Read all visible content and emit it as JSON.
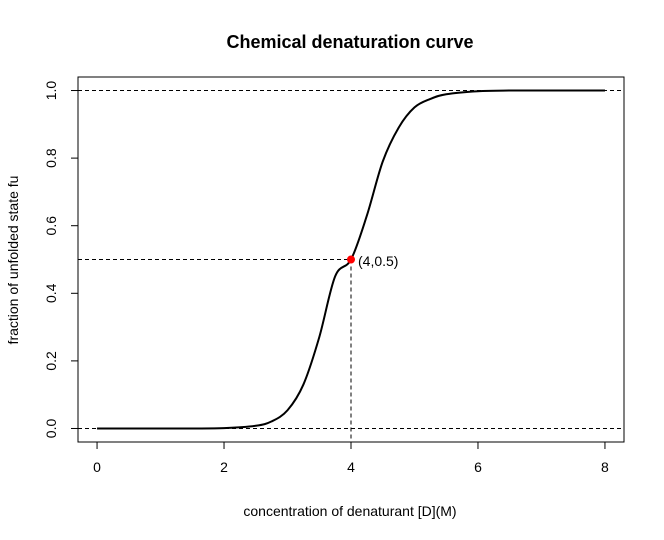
{
  "chart_data": {
    "type": "line",
    "title": "Chemical denaturation curve",
    "xlabel": "concentration of denaturant [D](M)",
    "ylabel": "fraction of unfolded state fu",
    "xlim": [
      -0.3,
      8.3
    ],
    "ylim": [
      -0.04,
      1.04
    ],
    "x_ticks": [
      0,
      2,
      4,
      6,
      8
    ],
    "x_tick_labels": [
      "0",
      "2",
      "4",
      "6",
      "8"
    ],
    "y_ticks": [
      0.0,
      0.2,
      0.4,
      0.6,
      0.8,
      1.0
    ],
    "y_tick_labels": [
      "0.0",
      "0.2",
      "0.4",
      "0.6",
      "0.8",
      "1.0"
    ],
    "series": [
      {
        "x": [
          0.0,
          0.5,
          1.0,
          1.5,
          2.0,
          2.5,
          2.75,
          3.0,
          3.25,
          3.5,
          3.75,
          4.0,
          4.25,
          4.5,
          4.75,
          5.0,
          5.25,
          5.5,
          6.0,
          6.5,
          7.0,
          7.5,
          8.0
        ],
        "y": [
          0.0,
          0.0,
          0.0,
          0.0,
          0.001,
          0.008,
          0.021,
          0.054,
          0.13,
          0.27,
          0.45,
          0.5,
          0.63,
          0.79,
          0.89,
          0.95,
          0.975,
          0.989,
          0.998,
          1.0,
          1.0,
          1.0,
          1.0
        ],
        "color": "#000000"
      }
    ],
    "reference_lines": {
      "horizontal": [
        0.0,
        1.0
      ],
      "style": "dashed"
    },
    "midpoint": {
      "x": 4,
      "y": 0.5,
      "label": "(4,0.5)",
      "color": "#ff0000"
    },
    "grid": false,
    "legend": "none"
  }
}
